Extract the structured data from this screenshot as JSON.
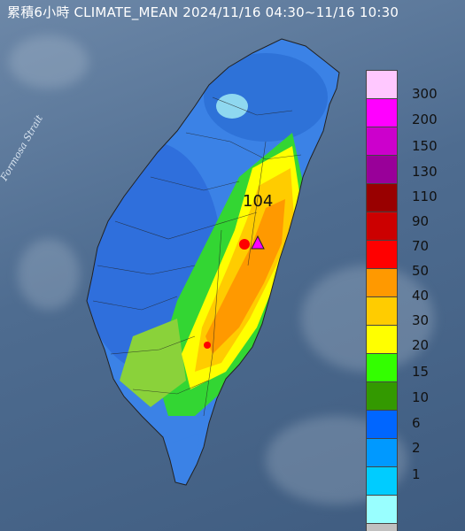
{
  "title": "累積6小時 CLIMATE_MEAN 2024/11/16 04:30~11/16 10:30",
  "strait_label": "Formosa Strait",
  "max_marker": {
    "value": "104",
    "icon": "triangle-max-icon"
  },
  "legend": {
    "labels": [
      "300",
      "200",
      "150",
      "130",
      "110",
      "90",
      "70",
      "50",
      "40",
      "30",
      "20",
      "15",
      "10",
      "6",
      "2",
      "1"
    ],
    "colors": [
      "#ffc8ff",
      "#ff00ff",
      "#cc00cc",
      "#990099",
      "#990000",
      "#cc0000",
      "#ff0000",
      "#ff9900",
      "#ffcc00",
      "#ffff00",
      "#33ff00",
      "#339900",
      "#0066ff",
      "#0099ff",
      "#00ccff",
      "#99ffff",
      "#c0c0c0"
    ]
  }
}
